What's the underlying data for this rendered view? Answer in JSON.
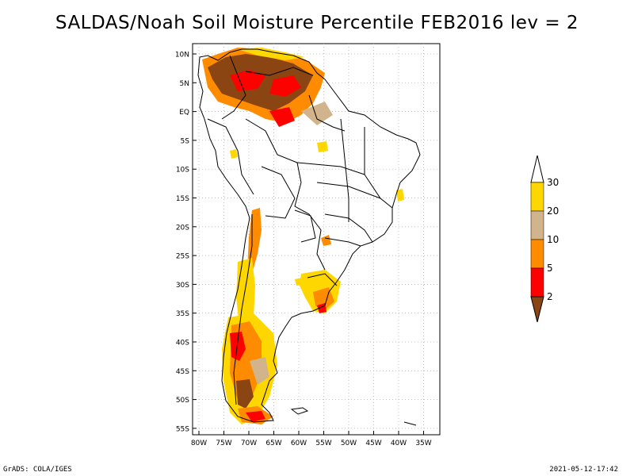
{
  "title": "SALDAS/Noah Soil Moisture Percentile FEB2016 lev = 2",
  "footer": {
    "left": "GrADS: COLA/IGES",
    "right": "2021-05-12-17:42"
  },
  "axes": {
    "lat_labels": [
      "10N",
      "5N",
      "EQ",
      "5S",
      "10S",
      "15S",
      "20S",
      "25S",
      "30S",
      "35S",
      "40S",
      "45S",
      "50S",
      "55S"
    ],
    "lon_labels": [
      "80W",
      "75W",
      "70W",
      "65W",
      "60W",
      "55W",
      "50W",
      "45W",
      "40W",
      "35W"
    ],
    "grid": true
  },
  "colorbar": {
    "orientation": "vertical",
    "placement": "right",
    "labels": [
      "2",
      "5",
      "10",
      "20",
      "30"
    ],
    "colors": [
      "#8b4513",
      "#ff0000",
      "#ff8c00",
      "#d2b48c",
      "#ffd700",
      "#ffffff"
    ]
  },
  "colors": {
    "dark_brown": "#8b4513",
    "red": "#ff0000",
    "orange": "#ff8c00",
    "tan": "#d2b48c",
    "yellow": "#ffd700"
  }
}
